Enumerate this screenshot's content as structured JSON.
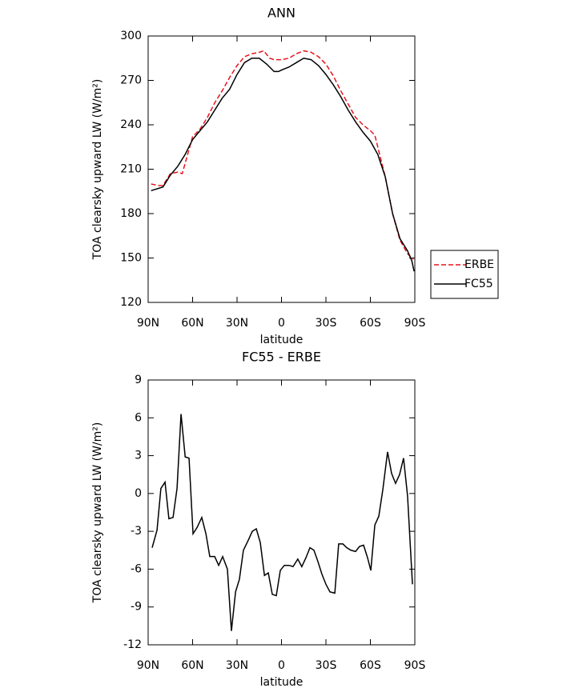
{
  "chart_data": [
    {
      "type": "line",
      "title": "ANN",
      "xlabel": "latitude",
      "ylabel": "TOA clearsky upward LW (W/m²)",
      "xlim": [
        90,
        -90
      ],
      "ylim": [
        120,
        300
      ],
      "xticks": [
        {
          "value": 90,
          "label": "90N"
        },
        {
          "value": 60,
          "label": "60N"
        },
        {
          "value": 30,
          "label": "30N"
        },
        0,
        {
          "value": -30,
          "label": "30S"
        },
        {
          "value": -60,
          "label": "60S"
        },
        {
          "value": -90,
          "label": "90S"
        }
      ],
      "yticks": [
        120,
        150,
        180,
        210,
        240,
        270,
        300
      ],
      "legend": "right",
      "series": [
        {
          "name": "ERBE",
          "color": "#e8141c",
          "dash": true,
          "x": [
            88,
            83,
            80,
            75,
            70,
            67,
            65,
            60,
            55,
            50,
            45,
            40,
            35,
            30,
            25,
            20,
            15,
            12,
            8,
            5,
            0,
            -5,
            -10,
            -15,
            -20,
            -25,
            -30,
            -35,
            -40,
            -45,
            -50,
            -55,
            -60,
            -63,
            -65,
            -70,
            -75,
            -80,
            -85,
            -89
          ],
          "values": [
            200,
            199,
            199,
            207,
            208,
            207,
            214,
            232,
            237,
            245,
            255,
            263,
            272,
            280,
            286,
            288,
            289,
            290,
            285,
            284,
            284,
            285,
            288,
            290,
            289,
            286,
            281,
            273,
            263,
            254,
            245,
            240,
            236,
            233,
            225,
            205,
            180,
            162,
            153,
            149
          ]
        },
        {
          "name": "FC55",
          "color": "#000000",
          "dash": false,
          "x": [
            88,
            80,
            75,
            70,
            65,
            60,
            55,
            50,
            45,
            40,
            35,
            30,
            25,
            20,
            15,
            10,
            5,
            2,
            0,
            -5,
            -10,
            -15,
            -20,
            -25,
            -30,
            -35,
            -40,
            -45,
            -50,
            -55,
            -60,
            -65,
            -70,
            -75,
            -80,
            -85,
            -88,
            -89.5
          ],
          "values": [
            195.5,
            198,
            206,
            212,
            220,
            230,
            236,
            242,
            250,
            258,
            264,
            274,
            282,
            285,
            285,
            281,
            276,
            276,
            277,
            279,
            282,
            285,
            284,
            280,
            274,
            267,
            259,
            250,
            242,
            235,
            229,
            220,
            205,
            180,
            163,
            155,
            148,
            141
          ]
        }
      ]
    },
    {
      "type": "line",
      "title": "FC55 - ERBE",
      "xlabel": "latitude",
      "ylabel": "TOA clearsky upward LW (W/m²)",
      "xlim": [
        90,
        -90
      ],
      "ylim": [
        -12,
        9
      ],
      "xticks": [
        {
          "value": 90,
          "label": "90N"
        },
        {
          "value": 60,
          "label": "60N"
        },
        {
          "value": 30,
          "label": "30N"
        },
        0,
        {
          "value": -30,
          "label": "30S"
        },
        {
          "value": -60,
          "label": "60S"
        },
        {
          "value": -90,
          "label": "90S"
        }
      ],
      "yticks": [
        -12,
        -9,
        -6,
        -3,
        0,
        3,
        6,
        9
      ],
      "series": [
        {
          "color": "#000000",
          "dash": false,
          "x": [
            87.3,
            84,
            81.4,
            78.6,
            76,
            73.2,
            70.5,
            67.8,
            65,
            62.4,
            59.7,
            57,
            53.8,
            51,
            48.4,
            45.1,
            42.4,
            39.7,
            36.5,
            33.8,
            31,
            28.4,
            25.7,
            22.4,
            19.7,
            17,
            14.3,
            11.5,
            8.9,
            6.2,
            3.5,
            0.8,
            -1.9,
            -5.1,
            -7.8,
            -11,
            -13.7,
            -16.5,
            -19.2,
            -21.9,
            -24.6,
            -27.3,
            -30,
            -32.7,
            -36,
            -38.6,
            -41.4,
            -44.1,
            -46.8,
            -50,
            -52.7,
            -55.4,
            -58.1,
            -60.3,
            -63,
            -65.7,
            -68.4,
            -71.6,
            -74.3,
            -77,
            -79.7,
            -82.4,
            -85.1,
            -88.4
          ],
          "values": [
            -4.3,
            -2.9,
            0.4,
            0.9,
            -2.0,
            -1.9,
            0.4,
            6.3,
            2.9,
            2.8,
            -3.2,
            -2.7,
            -1.9,
            -3.2,
            -5.0,
            -5.0,
            -5.7,
            -5.0,
            -6.0,
            -10.9,
            -7.8,
            -6.8,
            -4.5,
            -3.7,
            -3.0,
            -2.8,
            -3.9,
            -6.5,
            -6.3,
            -8.0,
            -8.1,
            -6.1,
            -5.7,
            -5.7,
            -5.8,
            -5.2,
            -5.8,
            -5.1,
            -4.3,
            -4.5,
            -5.4,
            -6.4,
            -7.2,
            -7.8,
            -7.9,
            -4.0,
            -4.0,
            -4.3,
            -4.5,
            -4.6,
            -4.2,
            -4.1,
            -5.1,
            -6.1,
            -2.5,
            -1.8,
            0.3,
            3.3,
            1.6,
            0.8,
            1.5,
            2.8,
            -0.2,
            -7.2
          ]
        }
      ]
    }
  ]
}
